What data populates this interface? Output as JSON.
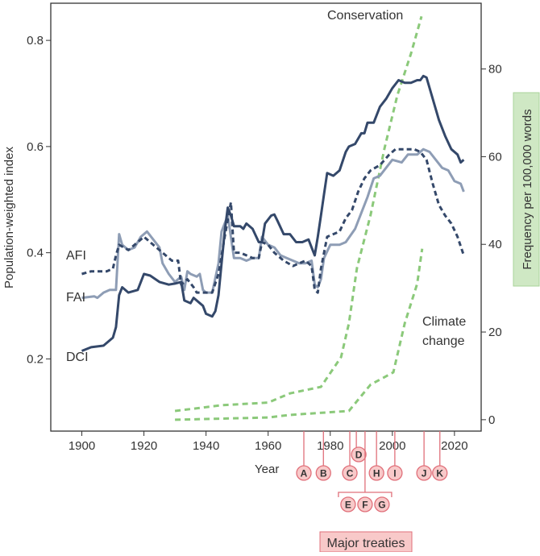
{
  "chart_data": {
    "type": "line",
    "xlabel": "Year",
    "ylabel_left": "Population-weighted index",
    "ylabel_right": "Frequency per 100,000 words",
    "xlim": [
      1890,
      2028.6
    ],
    "ylim_left": [
      0.064,
      0.87
    ],
    "ylim_right": [
      -2.6,
      95
    ],
    "x_ticks": [
      1900,
      1920,
      1940,
      1960,
      1980,
      2000,
      2020
    ],
    "y_ticks_left": [
      0.2,
      0.4,
      0.6,
      0.8
    ],
    "y_ticks_right": [
      0,
      20,
      40,
      60,
      80
    ],
    "colors": {
      "dci": "#34486a",
      "fai": "#8e9db5",
      "afi": "#34486a",
      "words": "#8bc97a",
      "treaty": "#e0707a",
      "treaty_fill": "#f8c9c9",
      "ylabel_right_bg": "#cfe8c4"
    },
    "series": [
      {
        "name": "DCI",
        "axis": "left",
        "style": "solid",
        "color": "#34486a",
        "x": [
          1900,
          1903,
          1907,
          1910,
          1911,
          1912,
          1913,
          1915,
          1918,
          1920,
          1922,
          1925,
          1928,
          1930,
          1932,
          1933,
          1935,
          1936,
          1938,
          1939,
          1940,
          1942,
          1943,
          1944,
          1945,
          1946,
          1947,
          1948,
          1949,
          1951,
          1952,
          1953,
          1955,
          1957,
          1958,
          1959,
          1961,
          1962,
          1963,
          1965,
          1967,
          1969,
          1971,
          1973,
          1974,
          1975,
          1976,
          1977,
          1978,
          1979,
          1981,
          1983,
          1985,
          1986,
          1988,
          1990,
          1991,
          1992,
          1994,
          1996,
          1998,
          2000,
          2002,
          2004,
          2006,
          2008,
          2009,
          2010,
          2011,
          2013,
          2015,
          2017,
          2019,
          2021,
          2022,
          2023
        ],
        "y": [
          0.215,
          0.222,
          0.225,
          0.24,
          0.26,
          0.32,
          0.335,
          0.325,
          0.33,
          0.36,
          0.357,
          0.345,
          0.34,
          0.342,
          0.345,
          0.31,
          0.305,
          0.315,
          0.305,
          0.3,
          0.285,
          0.28,
          0.29,
          0.32,
          0.38,
          0.44,
          0.485,
          0.47,
          0.45,
          0.45,
          0.445,
          0.455,
          0.445,
          0.42,
          0.42,
          0.455,
          0.47,
          0.472,
          0.46,
          0.435,
          0.435,
          0.42,
          0.42,
          0.425,
          0.41,
          0.395,
          0.43,
          0.47,
          0.51,
          0.55,
          0.545,
          0.555,
          0.59,
          0.6,
          0.605,
          0.625,
          0.625,
          0.645,
          0.645,
          0.675,
          0.69,
          0.71,
          0.725,
          0.72,
          0.72,
          0.725,
          0.725,
          0.733,
          0.73,
          0.69,
          0.65,
          0.62,
          0.595,
          0.585,
          0.57,
          0.575
        ]
      },
      {
        "name": "FAI",
        "axis": "left",
        "style": "solid",
        "color": "#8e9db5",
        "x": [
          1900,
          1904,
          1905,
          1907,
          1909,
          1911,
          1912,
          1913,
          1915,
          1917,
          1919,
          1921,
          1923,
          1925,
          1926,
          1928,
          1930,
          1932,
          1933,
          1934,
          1935,
          1937,
          1938,
          1939,
          1940,
          1942,
          1944,
          1945,
          1947,
          1949,
          1951,
          1953,
          1955,
          1957,
          1958,
          1960,
          1962,
          1964,
          1966,
          1968,
          1970,
          1972,
          1974,
          1975,
          1976,
          1977,
          1978,
          1980,
          1983,
          1985,
          1988,
          1990,
          1992,
          1994,
          1996,
          1998,
          2000,
          2003,
          2005,
          2008,
          2010,
          2012,
          2014,
          2016,
          2018,
          2020,
          2022,
          2023
        ],
        "y": [
          0.315,
          0.318,
          0.315,
          0.325,
          0.33,
          0.33,
          0.435,
          0.415,
          0.405,
          0.41,
          0.43,
          0.44,
          0.425,
          0.41,
          0.38,
          0.36,
          0.345,
          0.355,
          0.33,
          0.365,
          0.36,
          0.355,
          0.36,
          0.33,
          0.325,
          0.325,
          0.38,
          0.44,
          0.47,
          0.39,
          0.39,
          0.385,
          0.39,
          0.39,
          0.43,
          0.415,
          0.41,
          0.395,
          0.39,
          0.385,
          0.38,
          0.38,
          0.385,
          0.34,
          0.335,
          0.35,
          0.39,
          0.415,
          0.415,
          0.42,
          0.445,
          0.475,
          0.505,
          0.54,
          0.545,
          0.56,
          0.575,
          0.57,
          0.585,
          0.585,
          0.595,
          0.59,
          0.575,
          0.56,
          0.555,
          0.535,
          0.53,
          0.515
        ]
      },
      {
        "name": "AFI",
        "axis": "left",
        "style": "dashed",
        "color": "#34486a",
        "x": [
          1900,
          1903,
          1908,
          1910,
          1911,
          1912,
          1915,
          1918,
          1920,
          1923,
          1926,
          1929,
          1931,
          1932,
          1934,
          1936,
          1937,
          1939,
          1942,
          1944,
          1946,
          1948,
          1949,
          1951,
          1953,
          1955,
          1957,
          1958,
          1960,
          1962,
          1965,
          1968,
          1970,
          1972,
          1974,
          1975,
          1976,
          1977,
          1979,
          1981,
          1983,
          1985,
          1987,
          1989,
          1991,
          1993,
          1996,
          1999,
          2001,
          2004,
          2007,
          2009,
          2011,
          2013,
          2015,
          2017,
          2019,
          2021,
          2023
        ],
        "y": [
          0.36,
          0.365,
          0.365,
          0.37,
          0.395,
          0.415,
          0.405,
          0.42,
          0.43,
          0.415,
          0.4,
          0.385,
          0.385,
          0.34,
          0.35,
          0.335,
          0.325,
          0.325,
          0.325,
          0.36,
          0.43,
          0.495,
          0.4,
          0.4,
          0.395,
          0.39,
          0.39,
          0.42,
          0.415,
          0.4,
          0.385,
          0.375,
          0.38,
          0.385,
          0.375,
          0.33,
          0.325,
          0.37,
          0.43,
          0.435,
          0.44,
          0.465,
          0.48,
          0.515,
          0.54,
          0.555,
          0.565,
          0.585,
          0.595,
          0.595,
          0.595,
          0.59,
          0.575,
          0.53,
          0.49,
          0.47,
          0.455,
          0.43,
          0.395
        ]
      },
      {
        "name": "Conservation",
        "axis": "right",
        "style": "dashed",
        "color": "#8bc97a",
        "x": [
          1930,
          1945,
          1960,
          1967,
          1977,
          1983.5,
          1986,
          1988.6,
          1993,
          1997.5,
          2001.6,
          2006,
          2009.4
        ],
        "y": [
          2,
          3.3,
          3.9,
          6,
          7.5,
          14.3,
          22,
          34.6,
          46.7,
          62,
          74,
          83.5,
          92
        ]
      },
      {
        "name": "Climate change",
        "axis": "right",
        "style": "dashed",
        "color": "#8bc97a",
        "x": [
          1930,
          1960,
          1967,
          1986,
          1993,
          2000.3,
          2004,
          2008,
          2009.6
        ],
        "y": [
          0,
          0.5,
          1.1,
          2,
          8,
          10.8,
          22,
          31,
          39
        ]
      }
    ],
    "line_labels": {
      "afi": "AFI",
      "fai": "FAI",
      "dci": "DCI",
      "conservation": "Conservation",
      "climate_1": "Climate",
      "climate_2": "change"
    },
    "treaties": {
      "label": "Major treaties",
      "markers": [
        {
          "id": "A",
          "year": 1971.5,
          "row": 1
        },
        {
          "id": "B",
          "year": 1977.8,
          "row": 1
        },
        {
          "id": "C",
          "year": 1986.3,
          "row": 1
        },
        {
          "id": "D",
          "year": 1988.4,
          "row": 0
        },
        {
          "id": "E",
          "year": 1991.2,
          "row": 2
        },
        {
          "id": "F",
          "year": 1991.2,
          "row": 2
        },
        {
          "id": "G",
          "year": 1991.2,
          "row": 2
        },
        {
          "id": "H",
          "year": 1994.9,
          "row": 1
        },
        {
          "id": "I",
          "year": 2000.8,
          "row": 1
        },
        {
          "id": "J",
          "year": 2010.2,
          "row": 1
        },
        {
          "id": "K",
          "year": 2015.3,
          "row": 1
        }
      ]
    }
  }
}
